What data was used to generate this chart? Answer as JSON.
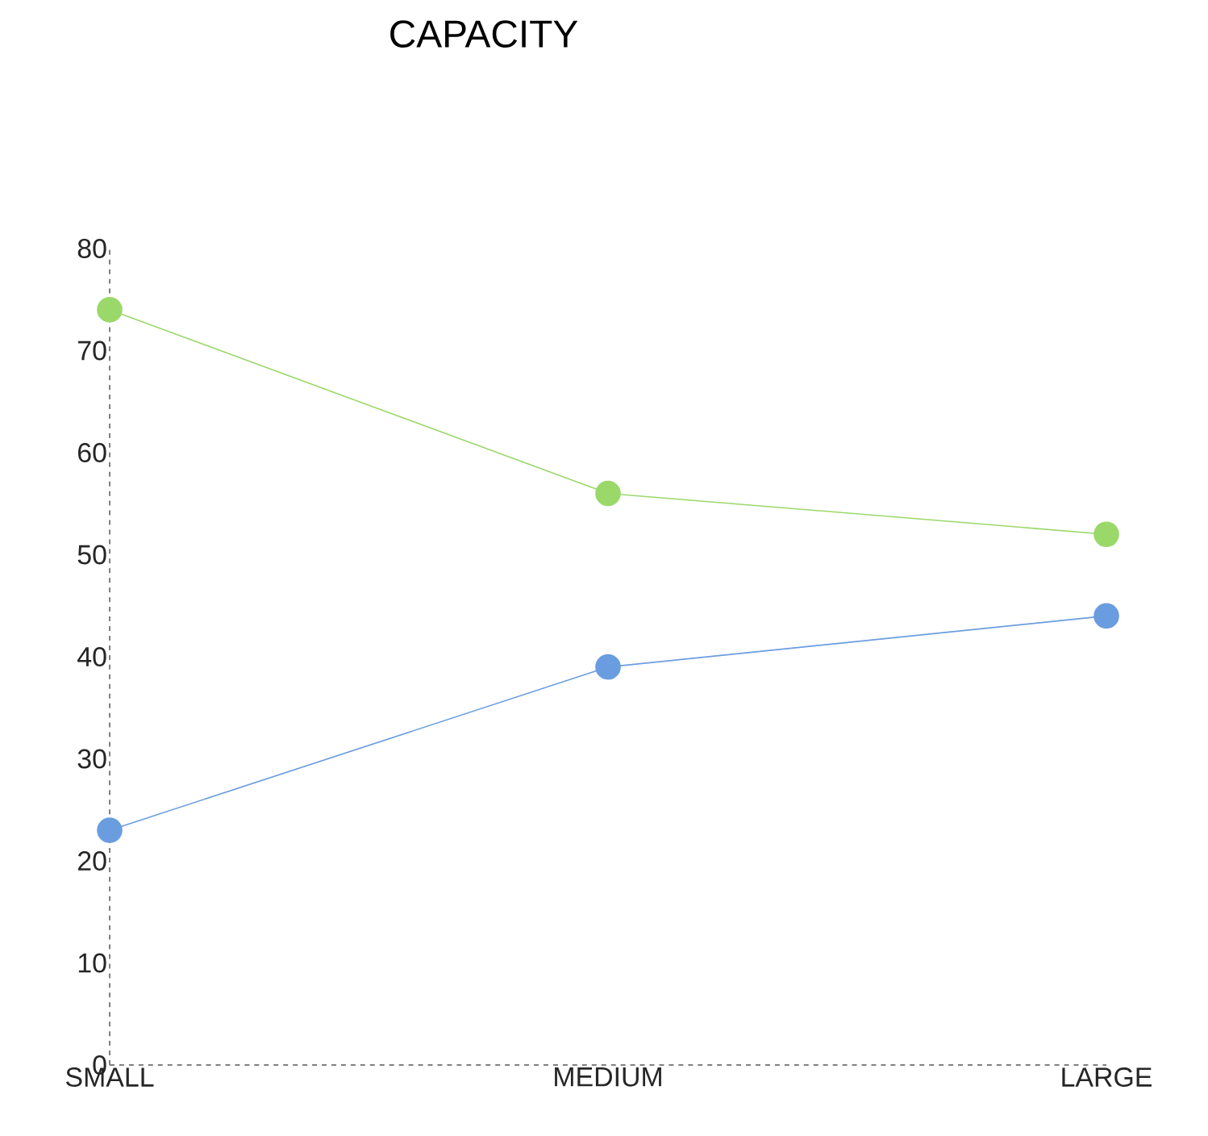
{
  "chart_data": {
    "type": "line",
    "title": "CAPACITY",
    "categories": [
      "SMALL",
      "MEDIUM",
      "LARGE"
    ],
    "series": [
      {
        "color": "#9bd86a",
        "values": [
          74,
          56,
          52
        ]
      },
      {
        "color": "#6a9de0",
        "values": [
          23,
          39,
          44
        ]
      }
    ],
    "ylim": [
      0,
      80
    ],
    "yticks": [
      0,
      10,
      20,
      30,
      40,
      50,
      60,
      70,
      80
    ],
    "grid": false,
    "marker": "circle",
    "line_style": "solid"
  }
}
